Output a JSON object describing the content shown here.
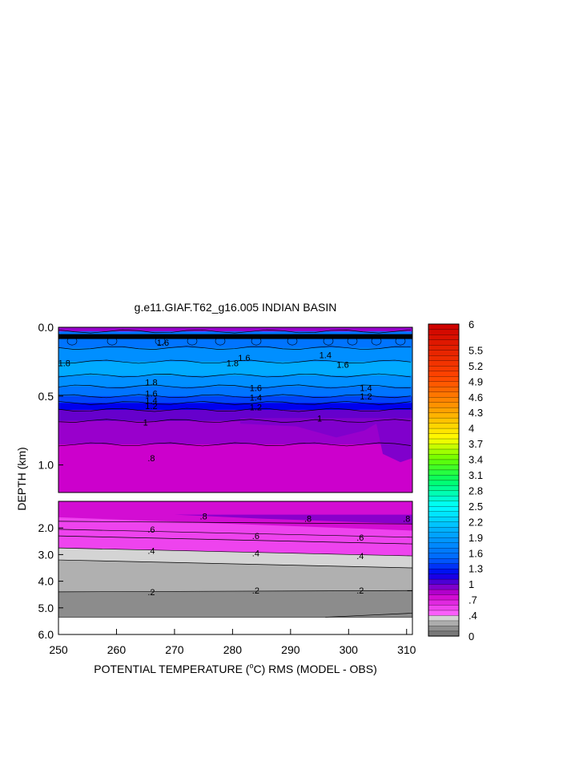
{
  "chart_data": {
    "type": "heatmap",
    "title": "g.e11.GIAF.T62_g16.005 INDIAN BASIN",
    "xlabel_prefix": "POTENTIAL TEMPERATURE (",
    "xlabel_unit_sup": "o",
    "xlabel_suffix": "C) RMS (MODEL - OBS)",
    "ylabel": "DEPTH (km)",
    "xlim": [
      250,
      311
    ],
    "x_ticks": [
      "250",
      "260",
      "270",
      "280",
      "290",
      "300",
      "310"
    ],
    "top_panel": {
      "ylim": [
        0.0,
        1.2
      ],
      "y_ticks": [
        "0.0",
        "0.5",
        "1.0"
      ],
      "bands": [
        {
          "depth": [
            0.0,
            0.03
          ],
          "value": 0.8
        },
        {
          "depth": [
            0.03,
            0.15
          ],
          "value": 1.6
        },
        {
          "depth": [
            0.15,
            0.25
          ],
          "value": 1.8
        },
        {
          "depth": [
            0.25,
            0.35
          ],
          "value": 2.0
        },
        {
          "depth": [
            0.35,
            0.43
          ],
          "value": 1.8
        },
        {
          "depth": [
            0.43,
            0.5
          ],
          "value": 1.6
        },
        {
          "depth": [
            0.5,
            0.55
          ],
          "value": 1.4
        },
        {
          "depth": [
            0.55,
            0.6
          ],
          "value": 1.2
        },
        {
          "depth": [
            0.6,
            0.68
          ],
          "value": 1.0
        },
        {
          "depth": [
            0.68,
            0.85
          ],
          "value": 0.9
        },
        {
          "depth": [
            0.85,
            1.2
          ],
          "value": 0.8
        }
      ],
      "contour_labels": [
        {
          "x": 251,
          "depth": 0.26,
          "text": "1.8"
        },
        {
          "x": 266,
          "depth": 0.4,
          "text": "1.8"
        },
        {
          "x": 266,
          "depth": 0.48,
          "text": "1.6"
        },
        {
          "x": 266,
          "depth": 0.53,
          "text": "1.4"
        },
        {
          "x": 266,
          "depth": 0.57,
          "text": "1.2"
        },
        {
          "x": 265,
          "depth": 0.69,
          "text": "1"
        },
        {
          "x": 266,
          "depth": 0.95,
          "text": ".8"
        },
        {
          "x": 268,
          "depth": 0.11,
          "text": "1.6"
        },
        {
          "x": 280,
          "depth": 0.26,
          "text": "1.8"
        },
        {
          "x": 282,
          "depth": 0.22,
          "text": "1.6"
        },
        {
          "x": 284,
          "depth": 0.44,
          "text": "1.6"
        },
        {
          "x": 284,
          "depth": 0.51,
          "text": "1.4"
        },
        {
          "x": 284,
          "depth": 0.58,
          "text": "1.2"
        },
        {
          "x": 296,
          "depth": 0.2,
          "text": "1.4"
        },
        {
          "x": 299,
          "depth": 0.27,
          "text": "1.6"
        },
        {
          "x": 303,
          "depth": 0.44,
          "text": "1.4"
        },
        {
          "x": 303,
          "depth": 0.5,
          "text": "1.2"
        },
        {
          "x": 295,
          "depth": 0.66,
          "text": "1"
        }
      ]
    },
    "bottom_panel": {
      "ylim": [
        1.0,
        6.0
      ],
      "y_ticks": [
        "2.0",
        "3.0",
        "4.0",
        "5.0",
        "6.0"
      ],
      "y_tick_values": [
        2.0,
        3.0,
        4.0,
        5.0,
        6.0
      ],
      "contour_labels": [
        {
          "x": 275,
          "depth": 1.55,
          "text": ".8"
        },
        {
          "x": 293,
          "depth": 1.65,
          "text": ".8"
        },
        {
          "x": 310,
          "depth": 1.65,
          "text": ".8"
        },
        {
          "x": 266,
          "depth": 2.05,
          "text": ".6"
        },
        {
          "x": 284,
          "depth": 2.3,
          "text": ".6"
        },
        {
          "x": 302,
          "depth": 2.35,
          "text": ".6"
        },
        {
          "x": 266,
          "depth": 2.85,
          "text": ".4"
        },
        {
          "x": 284,
          "depth": 2.95,
          "text": ".4"
        },
        {
          "x": 302,
          "depth": 3.05,
          "text": ".4"
        },
        {
          "x": 266,
          "depth": 4.4,
          "text": ".2"
        },
        {
          "x": 284,
          "depth": 4.35,
          "text": ".2"
        },
        {
          "x": 302,
          "depth": 4.35,
          "text": ".2"
        }
      ]
    },
    "colorbar": {
      "vmin": 0,
      "vmax": 6,
      "labels": [
        "6",
        "5.5",
        "5.2",
        "4.9",
        "4.6",
        "4.3",
        "4",
        "3.7",
        "3.4",
        "3.1",
        "2.8",
        "2.5",
        "2.2",
        "1.9",
        "1.6",
        "1.3",
        "1",
        ".7",
        ".4",
        "0"
      ],
      "label_values": [
        6,
        5.5,
        5.2,
        4.9,
        4.6,
        4.3,
        4,
        3.7,
        3.4,
        3.1,
        2.8,
        2.5,
        2.2,
        1.9,
        1.6,
        1.3,
        1,
        0.7,
        0.4,
        0
      ],
      "colors": [
        {
          "v": 0.0,
          "c": "#6e6e6e"
        },
        {
          "v": 0.2,
          "c": "#9a9a9a"
        },
        {
          "v": 0.35,
          "c": "#d4d4d4"
        },
        {
          "v": 0.42,
          "c": "#ff66ff"
        },
        {
          "v": 0.8,
          "c": "#cc00cc"
        },
        {
          "v": 1.0,
          "c": "#6600cc"
        },
        {
          "v": 1.2,
          "c": "#0000ee"
        },
        {
          "v": 1.5,
          "c": "#0066ff"
        },
        {
          "v": 2.0,
          "c": "#00aaff"
        },
        {
          "v": 2.5,
          "c": "#00ffff"
        },
        {
          "v": 3.0,
          "c": "#00ff66"
        },
        {
          "v": 3.4,
          "c": "#66ff00"
        },
        {
          "v": 3.8,
          "c": "#ffff00"
        },
        {
          "v": 4.4,
          "c": "#ff9900"
        },
        {
          "v": 5.0,
          "c": "#ff4400"
        },
        {
          "v": 6.0,
          "c": "#cc0000"
        }
      ]
    }
  }
}
